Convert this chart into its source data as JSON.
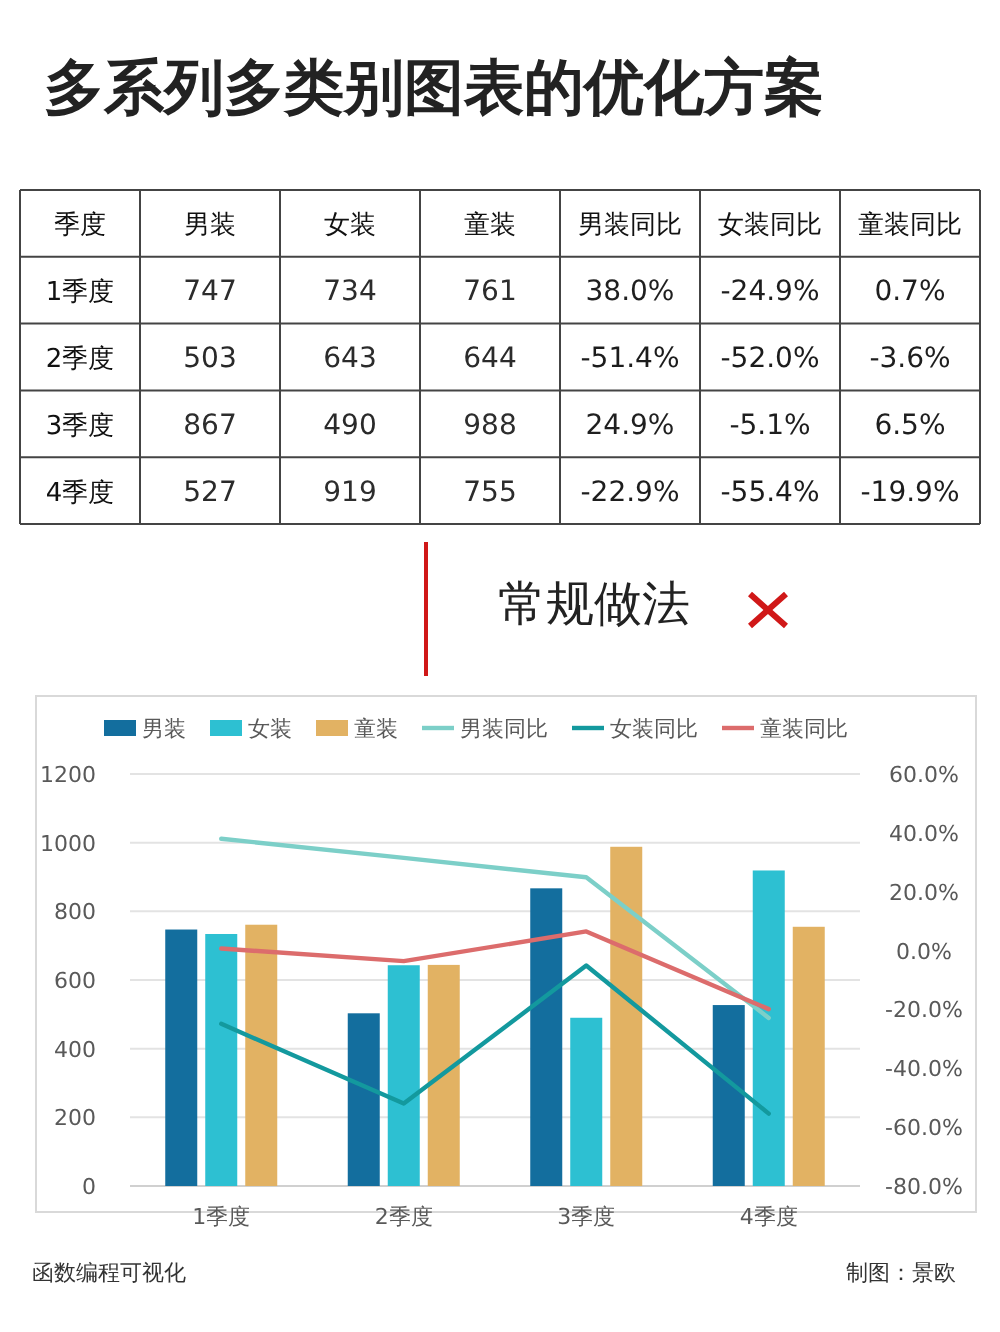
{
  "chart_data": [
    {
      "type": "heatmap",
      "title": "多系列多类别图表的优化方案",
      "ylabel": "季度",
      "categories": [
        "男装",
        "女装",
        "童装",
        "男装同比",
        "女装同比",
        "童装同比"
      ],
      "y_categories": [
        "1季度",
        "2季度",
        "3季度",
        "4季度"
      ],
      "cells": [
        [
          747,
          734,
          761,
          38.0,
          -24.9,
          0.7
        ],
        [
          503,
          643,
          644,
          -51.4,
          -52.0,
          -3.6
        ],
        [
          867,
          490,
          988,
          24.9,
          -5.1,
          6.5
        ],
        [
          527,
          919,
          755,
          -22.9,
          -55.4,
          -19.9
        ]
      ],
      "cell_labels": [
        [
          "747",
          "734",
          "761",
          "38.0%",
          "-24.9%",
          "0.7%"
        ],
        [
          "503",
          "643",
          "644",
          "-51.4%",
          "-52.0%",
          "-3.6%"
        ],
        [
          "867",
          "490",
          "988",
          "24.9%",
          "-5.1%",
          "6.5%"
        ],
        [
          "527",
          "919",
          "755",
          "-22.9%",
          "-55.4%",
          "-19.9%"
        ]
      ]
    },
    {
      "type": "bar",
      "title": "常规做法",
      "categories": [
        "1季度",
        "2季度",
        "3季度",
        "4季度"
      ],
      "series": [
        {
          "name": "男装",
          "color": "#136e9e",
          "values": [
            747,
            503,
            867,
            527
          ]
        },
        {
          "name": "女装",
          "color": "#2dc0d2",
          "values": [
            734,
            643,
            490,
            919
          ]
        },
        {
          "name": "童装",
          "color": "#e2b263",
          "values": [
            761,
            644,
            988,
            755
          ]
        },
        {
          "name": "男装同比",
          "type": "line",
          "axis": "y2",
          "color": "#7ccfc8",
          "values": [
            38.0,
            31.5,
            24.9,
            -22.9
          ]
        },
        {
          "name": "女装同比",
          "type": "line",
          "axis": "y2",
          "color": "#13999e",
          "values": [
            -24.9,
            -52.0,
            -5.1,
            -55.4
          ]
        },
        {
          "name": "童装同比",
          "type": "line",
          "axis": "y2",
          "color": "#dc6c6c",
          "values": [
            0.7,
            -3.6,
            6.5,
            -19.9
          ]
        }
      ],
      "ylim": [
        0,
        1200
      ],
      "yticks": [
        0,
        200,
        400,
        600,
        800,
        1000,
        1200
      ],
      "y2lim": [
        -80,
        60
      ],
      "y2ticks": [
        {
          "value": -80,
          "label": "-80.0%"
        },
        {
          "value": -60,
          "label": "-60.0%"
        },
        {
          "value": -40,
          "label": "-40.0%"
        },
        {
          "value": -20,
          "label": "-20.0%"
        },
        {
          "value": 0,
          "label": "0.0%"
        },
        {
          "value": 20,
          "label": "20.0%"
        },
        {
          "value": 40,
          "label": "40.0%"
        },
        {
          "value": 60,
          "label": "60.0%"
        }
      ],
      "grid": "y",
      "legend": "top",
      "annotations": [
        "函数编程可视化",
        "制图：景欧"
      ]
    }
  ]
}
